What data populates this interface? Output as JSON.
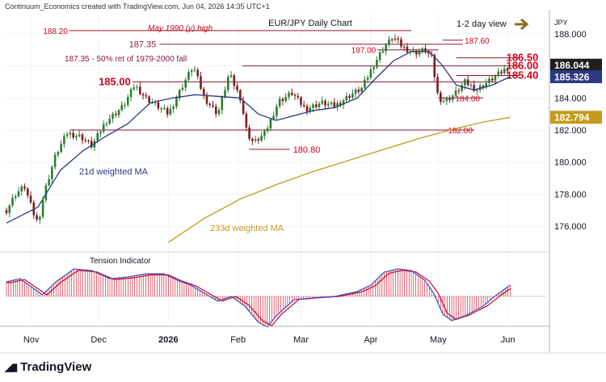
{
  "header": {
    "credit": "Continuum_Economics created with TradingView.com, Jun 04, 2026 14:35 UTC+1"
  },
  "footer": {
    "brand": "TradingView"
  },
  "chart_data": {
    "type": "candlestick",
    "title": "EUR/JPY Daily Chart",
    "view": "1-2 day view",
    "currency": "JPY",
    "x_labels": [
      {
        "label": "Nov",
        "day": 11
      },
      {
        "label": "Dec",
        "day": 41
      },
      {
        "label": "2026",
        "day": 72
      },
      {
        "label": "Feb",
        "day": 103
      },
      {
        "label": "Mar",
        "day": 131
      },
      {
        "label": "Apr",
        "day": 162
      },
      {
        "label": "May",
        "day": 192
      },
      {
        "label": "Jun",
        "day": 223
      }
    ],
    "y_ticks": [
      "188.000",
      "186.000",
      "184.000",
      "182.000",
      "180.000",
      "178.000",
      "176.000"
    ],
    "ylim": [
      174.5,
      189.2
    ],
    "day_range": [
      0,
      240
    ],
    "price_badges": [
      {
        "value": "186.044",
        "color": "#1e1e1e"
      },
      {
        "value": "185.326",
        "color": "#2b3a80"
      },
      {
        "value": "182.794",
        "color": "#c49a1c"
      }
    ],
    "levels": [
      {
        "price": 188.2,
        "d0": 28,
        "d1": 180,
        "label": "188.20"
      },
      {
        "price": 187.6,
        "d0": 194,
        "d1": 203,
        "label": "187.60"
      },
      {
        "price": 187.35,
        "d0": 68,
        "d1": 203,
        "label": "187.35"
      },
      {
        "price": 187.0,
        "d0": 165,
        "d1": 192,
        "label": "187.00"
      },
      {
        "price": 186.5,
        "d0": 200,
        "d1": 228,
        "label": "186.50"
      },
      {
        "price": 186.0,
        "d0": 105,
        "d1": 228,
        "label": "186.00"
      },
      {
        "price": 185.4,
        "d0": 200,
        "d1": 228,
        "label": "185.40"
      },
      {
        "price": 185.0,
        "d0": 56,
        "d1": 218,
        "label": "185.00"
      },
      {
        "price": 184.0,
        "d0": 192,
        "d1": 212,
        "label": "184.00"
      },
      {
        "price": 182.0,
        "d0": 28,
        "d1": 208,
        "label": "182.00"
      },
      {
        "price": 180.8,
        "d0": 108,
        "d1": 126,
        "label": "180.80"
      }
    ],
    "annotations": [
      {
        "text": "May 1990 (y) high",
        "color": "#d0021b",
        "italic": true
      },
      {
        "text": "187.35 - 50% ret of 1979-2000 fall",
        "color": "#8b1a4a",
        "italic": false
      },
      {
        "text": "21d weighted MA",
        "color": "#2b3a80",
        "italic": false
      },
      {
        "text": "233d weighted MA",
        "color": "#c49a1c",
        "italic": false
      },
      {
        "text": "Tension Indicator",
        "color": "#131722",
        "italic": false
      }
    ],
    "anchors": [
      {
        "d": 0,
        "p": 177.0
      },
      {
        "d": 4,
        "p": 178.0
      },
      {
        "d": 8,
        "p": 178.5
      },
      {
        "d": 12,
        "p": 176.8
      },
      {
        "d": 14,
        "p": 176.2
      },
      {
        "d": 17,
        "p": 178.2
      },
      {
        "d": 22,
        "p": 180.5
      },
      {
        "d": 27,
        "p": 181.8
      },
      {
        "d": 33,
        "p": 181.6
      },
      {
        "d": 38,
        "p": 181.0
      },
      {
        "d": 44,
        "p": 182.5
      },
      {
        "d": 52,
        "p": 183.5
      },
      {
        "d": 57,
        "p": 184.8
      },
      {
        "d": 62,
        "p": 184.0
      },
      {
        "d": 72,
        "p": 183.0
      },
      {
        "d": 78,
        "p": 184.7
      },
      {
        "d": 83,
        "p": 186.0
      },
      {
        "d": 88,
        "p": 184.0
      },
      {
        "d": 94,
        "p": 183.0
      },
      {
        "d": 99,
        "p": 185.5
      },
      {
        "d": 104,
        "p": 184.0
      },
      {
        "d": 107,
        "p": 181.8
      },
      {
        "d": 110,
        "p": 181.2
      },
      {
        "d": 115,
        "p": 181.8
      },
      {
        "d": 121,
        "p": 183.8
      },
      {
        "d": 127,
        "p": 184.3
      },
      {
        "d": 133,
        "p": 183.3
      },
      {
        "d": 140,
        "p": 183.7
      },
      {
        "d": 146,
        "p": 183.5
      },
      {
        "d": 153,
        "p": 184.2
      },
      {
        "d": 158,
        "p": 184.6
      },
      {
        "d": 163,
        "p": 186.0
      },
      {
        "d": 168,
        "p": 187.2
      },
      {
        "d": 172,
        "p": 187.8
      },
      {
        "d": 176,
        "p": 187.2
      },
      {
        "d": 181,
        "p": 186.8
      },
      {
        "d": 186,
        "p": 187.0
      },
      {
        "d": 189,
        "p": 186.5
      },
      {
        "d": 192,
        "p": 184.0
      },
      {
        "d": 195,
        "p": 183.8
      },
      {
        "d": 199,
        "p": 184.2
      },
      {
        "d": 204,
        "p": 185.0
      },
      {
        "d": 209,
        "p": 184.5
      },
      {
        "d": 214,
        "p": 185.0
      },
      {
        "d": 219,
        "p": 185.5
      },
      {
        "d": 224,
        "p": 186.0
      }
    ],
    "ma21": [
      {
        "d": 0,
        "p": 176.2
      },
      {
        "d": 14,
        "p": 177.2
      },
      {
        "d": 24,
        "p": 179.5
      },
      {
        "d": 34,
        "p": 180.7
      },
      {
        "d": 44,
        "p": 181.6
      },
      {
        "d": 54,
        "p": 182.4
      },
      {
        "d": 64,
        "p": 183.7
      },
      {
        "d": 74,
        "p": 184.0
      },
      {
        "d": 84,
        "p": 184.2
      },
      {
        "d": 94,
        "p": 184.1
      },
      {
        "d": 104,
        "p": 184.0
      },
      {
        "d": 112,
        "p": 183.0
      },
      {
        "d": 120,
        "p": 182.6
      },
      {
        "d": 128,
        "p": 182.9
      },
      {
        "d": 136,
        "p": 183.2
      },
      {
        "d": 146,
        "p": 183.4
      },
      {
        "d": 156,
        "p": 184.0
      },
      {
        "d": 164,
        "p": 185.2
      },
      {
        "d": 172,
        "p": 186.3
      },
      {
        "d": 180,
        "p": 186.9
      },
      {
        "d": 188,
        "p": 186.9
      },
      {
        "d": 194,
        "p": 186.0
      },
      {
        "d": 200,
        "p": 184.8
      },
      {
        "d": 208,
        "p": 184.5
      },
      {
        "d": 216,
        "p": 184.8
      },
      {
        "d": 224,
        "p": 185.33
      }
    ],
    "ma233": [
      {
        "d": 72,
        "p": 175.0
      },
      {
        "d": 88,
        "p": 176.5
      },
      {
        "d": 104,
        "p": 177.7
      },
      {
        "d": 120,
        "p": 178.6
      },
      {
        "d": 136,
        "p": 179.4
      },
      {
        "d": 152,
        "p": 180.1
      },
      {
        "d": 168,
        "p": 180.8
      },
      {
        "d": 184,
        "p": 181.5
      },
      {
        "d": 200,
        "p": 182.1
      },
      {
        "d": 212,
        "p": 182.5
      },
      {
        "d": 224,
        "p": 182.79
      }
    ],
    "tension": {
      "ylim": [
        -1.1,
        1.1
      ],
      "anchors": [
        {
          "d": 0,
          "v": 0.45
        },
        {
          "d": 6,
          "v": 0.55
        },
        {
          "d": 12,
          "v": 0.25
        },
        {
          "d": 16,
          "v": 0.05
        },
        {
          "d": 22,
          "v": 0.45
        },
        {
          "d": 30,
          "v": 0.85
        },
        {
          "d": 38,
          "v": 0.8
        },
        {
          "d": 46,
          "v": 0.55
        },
        {
          "d": 54,
          "v": 0.6
        },
        {
          "d": 62,
          "v": 0.7
        },
        {
          "d": 70,
          "v": 0.7
        },
        {
          "d": 76,
          "v": 0.5
        },
        {
          "d": 82,
          "v": 0.35
        },
        {
          "d": 88,
          "v": 0.1
        },
        {
          "d": 94,
          "v": -0.15
        },
        {
          "d": 100,
          "v": 0.0
        },
        {
          "d": 106,
          "v": -0.3
        },
        {
          "d": 112,
          "v": -0.8
        },
        {
          "d": 116,
          "v": -0.95
        },
        {
          "d": 120,
          "v": -0.6
        },
        {
          "d": 128,
          "v": -0.1
        },
        {
          "d": 136,
          "v": -0.05
        },
        {
          "d": 146,
          "v": 0.0
        },
        {
          "d": 156,
          "v": 0.15
        },
        {
          "d": 162,
          "v": 0.35
        },
        {
          "d": 168,
          "v": 0.75
        },
        {
          "d": 174,
          "v": 0.85
        },
        {
          "d": 180,
          "v": 0.8
        },
        {
          "d": 186,
          "v": 0.5
        },
        {
          "d": 190,
          "v": 0.1
        },
        {
          "d": 194,
          "v": -0.55
        },
        {
          "d": 198,
          "v": -0.75
        },
        {
          "d": 204,
          "v": -0.6
        },
        {
          "d": 212,
          "v": -0.3
        },
        {
          "d": 218,
          "v": 0.05
        },
        {
          "d": 224,
          "v": 0.35
        }
      ]
    }
  }
}
